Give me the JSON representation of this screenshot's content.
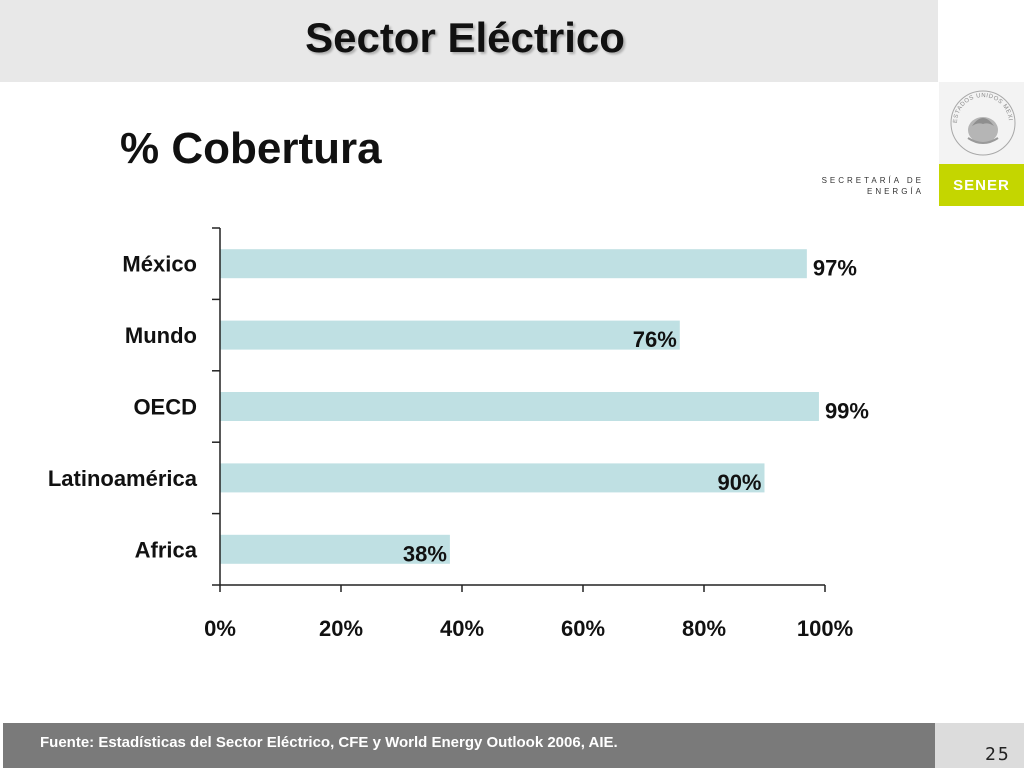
{
  "slide": {
    "title": "Sector Eléctrico",
    "page_number": "25"
  },
  "branding": {
    "secretaria": "SECRETARÍA DE ENERGÍA",
    "logo_text": "SENER",
    "seal_text": "ESTADOS UNIDOS MEXICANOS",
    "accent_color": "#c4d600"
  },
  "footer": {
    "source": "Fuente: Estadísticas del Sector Eléctrico, CFE y World Energy Outlook 2006, AIE."
  },
  "chart_data": {
    "type": "bar",
    "orientation": "horizontal",
    "title": "% Cobertura",
    "categories": [
      "México",
      "Mundo",
      "OECD",
      "Latinoamérica",
      "Africa"
    ],
    "values": [
      97,
      76,
      99,
      90,
      38
    ],
    "value_labels": [
      "97%",
      "76%",
      "99%",
      "90%",
      "38%"
    ],
    "xlim": [
      0,
      100
    ],
    "x_ticks": [
      "0%",
      "20%",
      "40%",
      "60%",
      "80%",
      "100%"
    ],
    "bar_color": "#bfe0e3",
    "grid": false,
    "legend": "none"
  }
}
